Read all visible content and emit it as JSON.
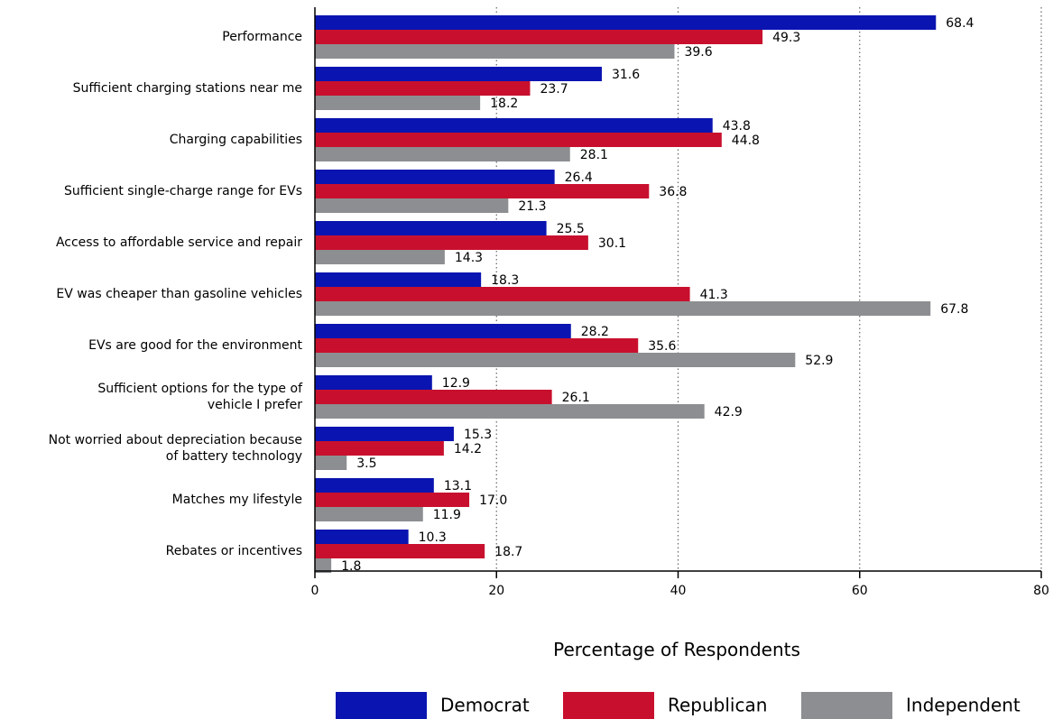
{
  "chart_data": {
    "type": "bar",
    "orientation": "horizontal",
    "categories": [
      "Performance",
      "Sufficient charging stations near me",
      "Charging capabilities",
      "Sufficient single-charge range for EVs",
      "Access to affordable service and repair",
      "EV was cheaper than gasoline vehicles",
      "EVs are good for the environment",
      [
        "Sufficient options for the type of",
        "vehicle I prefer"
      ],
      [
        "Not worried about depreciation because",
        "of battery technology"
      ],
      "Matches my lifestyle",
      "Rebates or incentives"
    ],
    "series": [
      {
        "name": "Democrat",
        "color": "#0a14b0",
        "values": [
          68.4,
          31.6,
          43.8,
          26.4,
          25.5,
          18.3,
          28.2,
          12.9,
          15.3,
          13.1,
          10.3
        ]
      },
      {
        "name": "Republican",
        "color": "#c8102e",
        "values": [
          49.3,
          23.7,
          44.8,
          36.8,
          30.1,
          41.3,
          35.6,
          26.1,
          14.2,
          17.0,
          18.7
        ]
      },
      {
        "name": "Independent",
        "color": "#8c8e91",
        "values": [
          39.6,
          18.2,
          28.1,
          21.3,
          14.3,
          67.8,
          52.9,
          42.9,
          3.5,
          11.9,
          1.8
        ]
      }
    ],
    "xlabel": "Percentage of Respondents",
    "xlim": [
      0,
      80
    ],
    "xticks": [
      0,
      20,
      40,
      60,
      80
    ],
    "grid": "vertical-dotted",
    "legend_position": "bottom"
  }
}
